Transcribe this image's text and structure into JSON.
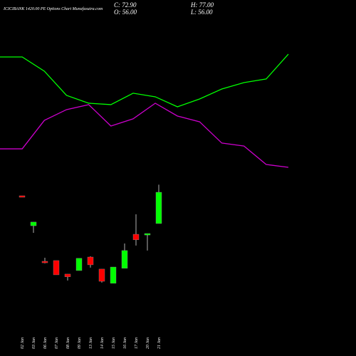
{
  "chart_data": [
    {
      "type": "line",
      "ylim": [
        0,
        100
      ],
      "series": [
        {
          "name": null,
          "color": "#00ff00",
          "values": [
            88.9,
            88.9,
            77.8,
            58.9,
            52.8,
            51.7,
            60.6,
            57.8,
            50,
            56.1,
            63.9,
            68.9,
            71.7,
            91.1
          ]
        },
        {
          "name": null,
          "color": "#cc00cc",
          "values": [
            17.2,
            17.2,
            39.4,
            47.8,
            51.7,
            35,
            40.6,
            52.8,
            42.8,
            38.3,
            21.7,
            19.4,
            5,
            2.8
          ]
        }
      ]
    },
    {
      "type": "candlestick",
      "title": "ICICIBANK 1420.00 PE Options Chart Munafasutra.com",
      "info": [
        "C: 72.90",
        "H: 77.00",
        "O: 56.00",
        "L: 56.00"
      ],
      "categories": [
        "02 Jan",
        "03 Jan",
        "06 Jan",
        "07 Jan",
        "08 Jan",
        "09 Jan",
        "13 Jan",
        "14 Jan",
        "15 Jan",
        "16 Jan",
        "17 Jan",
        "20 Jan",
        "21 Jan"
      ],
      "open": [
        71.0,
        54.8,
        35.6,
        36.0,
        28.7,
        30.6,
        37.9,
        31.4,
        23.7,
        31.8,
        50.2,
        49.8,
        56.0
      ],
      "high": [
        71.0,
        56.8,
        37.5,
        36.0,
        28.7,
        37.2,
        38.3,
        31.4,
        32.5,
        45.2,
        61.0,
        50.6,
        77.0
      ],
      "low": [
        70.2,
        51.0,
        34.5,
        28.3,
        25.2,
        30.6,
        32.2,
        24.1,
        23.7,
        31.8,
        44.1,
        41.4,
        56.0
      ],
      "close": [
        70.2,
        56.8,
        34.8,
        28.3,
        27.2,
        37.2,
        33.7,
        24.8,
        32.5,
        41.4,
        47.2,
        50.6,
        72.9
      ],
      "up_color": "#00ff00",
      "down_color": "#ff0000",
      "ylim": [
        22.9,
        80.6
      ]
    }
  ]
}
